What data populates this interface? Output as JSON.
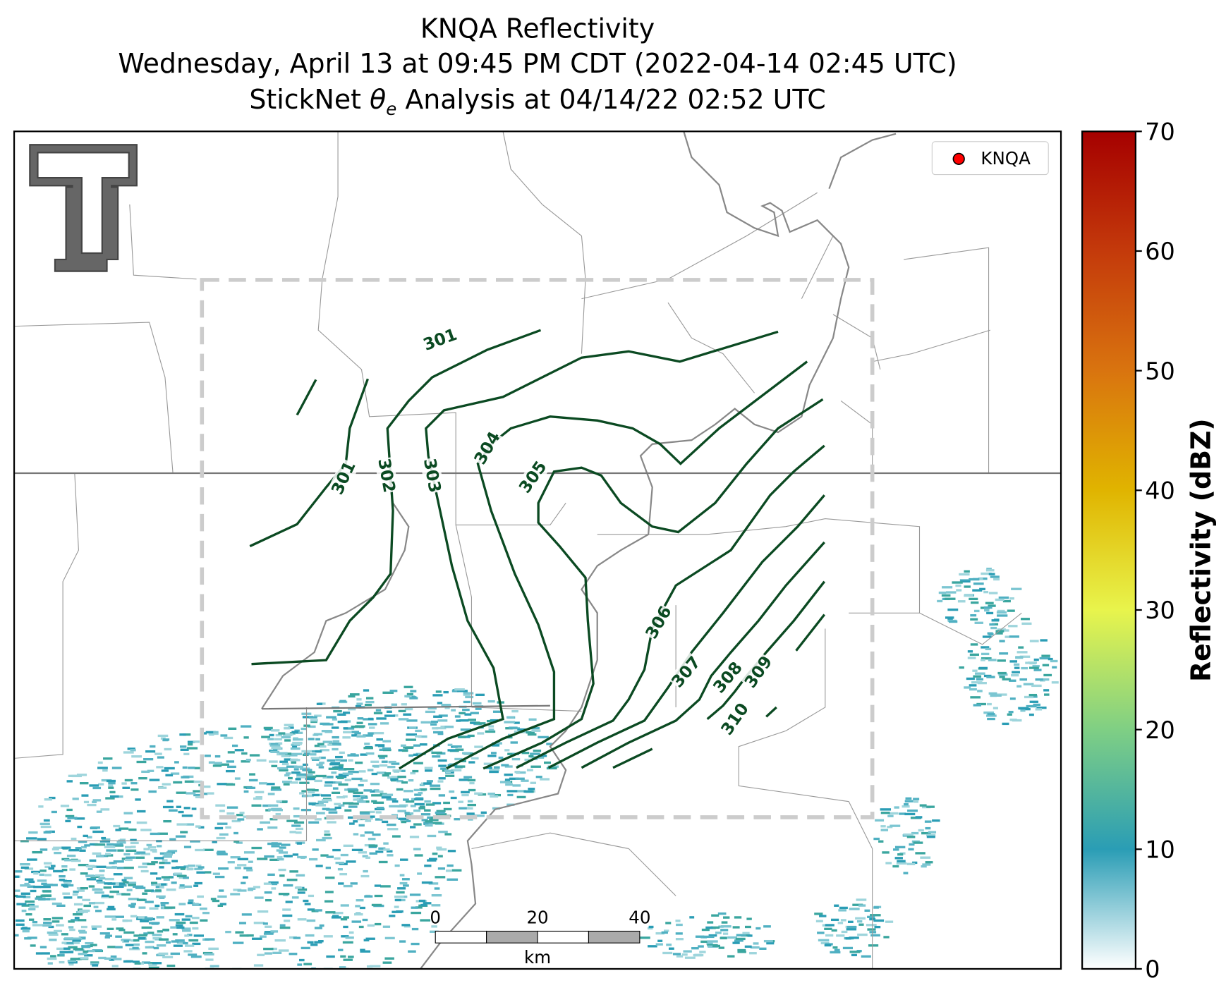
{
  "map": {
    "title": "KNQA Reflectivity",
    "subtitle": "Wednesday, April 13 at 09:45 PM CDT (2022-04-14 02:45 UTC)",
    "analysis_prefix": "StickNet",
    "analysis_symbol": "θ",
    "analysis_subscript": "e",
    "analysis_suffix": "Analysis at 04/14/22 02:52 UTC",
    "legend": {
      "label": "KNQA",
      "color": "#ff0000"
    },
    "contours": {
      "color": "#0b4a22",
      "levels": [
        301,
        302,
        303,
        304,
        305,
        306,
        307,
        308,
        309,
        310
      ],
      "labels": [
        301,
        301,
        302,
        303,
        304,
        305,
        306,
        307,
        308,
        309,
        310
      ]
    },
    "scale_bar": {
      "ticks": [
        0,
        20,
        40
      ],
      "unit": "km"
    },
    "colorbar": {
      "label": "Reflectivity (dBZ)",
      "lim": [
        0,
        70
      ],
      "ticks": [
        0,
        10,
        20,
        30,
        40,
        50,
        60,
        70
      ],
      "colors": [
        "#ffffff",
        "#2a9db5",
        "#7fcf84",
        "#e8f44c",
        "#e0b400",
        "#d9740f",
        "#c43a0b",
        "#a50000"
      ]
    }
  }
}
